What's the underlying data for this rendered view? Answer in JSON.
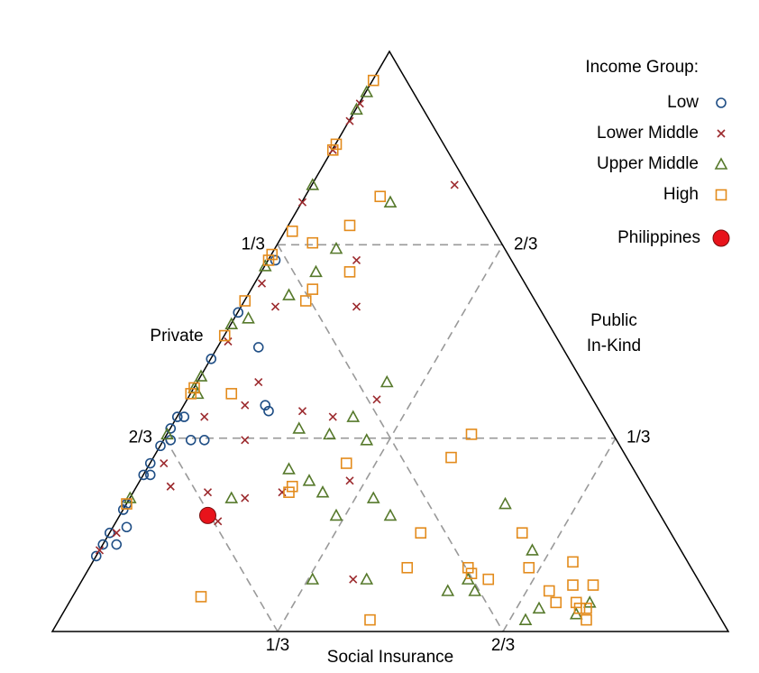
{
  "chart_data": {
    "type": "ternary",
    "axes": {
      "private": {
        "label": [
          "Private"
        ],
        "ticks": [
          {
            "value": 0.3333,
            "label": "1/3"
          },
          {
            "value": 0.6667,
            "label": "2/3"
          }
        ]
      },
      "social_insurance": {
        "label": [
          "Social Insurance"
        ],
        "ticks": [
          {
            "value": 0.3333,
            "label": "1/3"
          },
          {
            "value": 0.6667,
            "label": "2/3"
          }
        ]
      },
      "public_in_kind": {
        "label": [
          "Public",
          "In-Kind"
        ],
        "ticks": [
          {
            "value": 0.3333,
            "label": "1/3"
          },
          {
            "value": 0.6667,
            "label": "2/3"
          }
        ]
      }
    },
    "grid": true,
    "legend_title": "Income Group:",
    "legend_position": "top-right",
    "series": [
      {
        "name": "Low",
        "marker": "circle",
        "color": "#1f4e85",
        "social_insurance": [
          0,
          0,
          0.02,
          0,
          0.02,
          0,
          0,
          0,
          0.01,
          0,
          0,
          0.01,
          0,
          0,
          0.01,
          0.04,
          0.06,
          0.13,
          0.12,
          0.06,
          0,
          0,
          0.01
        ],
        "public_in_kind": [
          0.13,
          0.15,
          0.15,
          0.17,
          0.18,
          0.21,
          0.22,
          0.27,
          0.27,
          0.29,
          0.32,
          0.33,
          0.35,
          0.37,
          0.37,
          0.33,
          0.33,
          0.38,
          0.39,
          0.49,
          0.47,
          0.55,
          0.64
        ]
      },
      {
        "name": "Lower Middle",
        "marker": "x",
        "color": "#9c2a2e",
        "social_insurance": [
          0.21,
          0.13,
          0.17,
          0.05,
          0,
          0,
          0,
          0,
          0.01,
          0.09,
          0.09,
          0.04,
          0.12,
          0.18,
          0.23,
          0.28,
          0.02,
          0.05,
          0.11,
          0.17,
          0.22,
          0.31,
          0.01,
          0,
          0.15,
          0.4,
          0.01
        ],
        "public_in_kind": [
          0.77,
          0.64,
          0.56,
          0.56,
          0.74,
          0.88,
          0.83,
          0.91,
          0.5,
          0.43,
          0.39,
          0.37,
          0.33,
          0.38,
          0.37,
          0.4,
          0.29,
          0.25,
          0.24,
          0.23,
          0.24,
          0.26,
          0.17,
          0.14,
          0.19,
          0.09,
          0.6
        ]
      },
      {
        "name": "Upper Middle",
        "marker": "triangle",
        "color": "#56792b",
        "social_insurance": [
          0,
          0,
          0,
          0,
          0,
          0,
          0,
          0,
          0,
          0.13,
          0.09,
          0.08,
          0.06,
          0.02,
          0.28,
          0.26,
          0.24,
          0.3,
          0.19,
          0.21,
          0.28,
          0.25,
          0.15,
          0.32,
          0.36,
          0.4,
          0.01,
          0.56,
          0.64,
          0.42,
          0.34,
          0.55,
          0.59,
          0.57,
          0.69,
          0.7,
          0.76,
          0.77
        ],
        "public_in_kind": [
          0.93,
          0.9,
          0.77,
          0.63,
          0.53,
          0.44,
          0.42,
          0.34,
          0.23,
          0.74,
          0.66,
          0.62,
          0.58,
          0.54,
          0.43,
          0.37,
          0.34,
          0.33,
          0.35,
          0.28,
          0.24,
          0.26,
          0.23,
          0.2,
          0.23,
          0.2,
          0.41,
          0.22,
          0.14,
          0.09,
          0.09,
          0.07,
          0.07,
          0.09,
          0.02,
          0.04,
          0.03,
          0.05
        ]
      },
      {
        "name": "High",
        "marker": "square",
        "color": "#e38b1c",
        "social_insurance": [
          0,
          0,
          0,
          0,
          0,
          0,
          0,
          0,
          0,
          0,
          0.11,
          0.09,
          0.01,
          0.05,
          0.13,
          0.09,
          0.09,
          0.06,
          0.45,
          0.44,
          0.29,
          0.23,
          0.23,
          0.19,
          0.46,
          0.46,
          0.47,
          0.56,
          0.57,
          0.6,
          0.61,
          0.65,
          0.7,
          0.72,
          0.71,
          0.73,
          0.75,
          0.76,
          0.76,
          0.78,
          0.77
        ],
        "public_in_kind": [
          0.95,
          0.84,
          0.83,
          0.65,
          0.64,
          0.57,
          0.51,
          0.42,
          0.41,
          0.22,
          0.75,
          0.7,
          0.69,
          0.67,
          0.62,
          0.59,
          0.57,
          0.41,
          0.34,
          0.3,
          0.29,
          0.25,
          0.24,
          0.06,
          0.02,
          0.17,
          0.11,
          0.11,
          0.1,
          0.09,
          0.17,
          0.11,
          0.07,
          0.05,
          0.12,
          0.08,
          0.05,
          0.08,
          0.04,
          0.02,
          0.04
        ]
      },
      {
        "name": "Philippines",
        "marker": "dot",
        "color": "#e8131b",
        "social_insurance": [
          0.13
        ],
        "public_in_kind": [
          0.2
        ]
      }
    ]
  }
}
